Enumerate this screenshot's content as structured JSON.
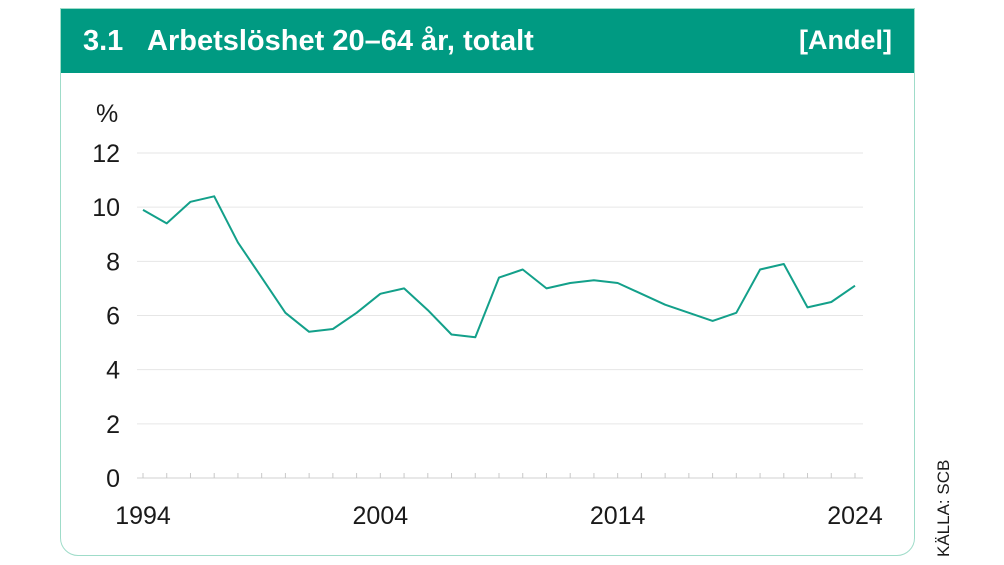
{
  "header": {
    "number": "3.1",
    "title": "Arbetslöshet 20–64 år, totalt",
    "unit_tag": "[Andel]"
  },
  "source": "KÄLLA: SCB",
  "colors": {
    "accent": "#009a82",
    "line": "#13a08a",
    "border": "#9fdcc9"
  },
  "chart_data": {
    "type": "line",
    "ylabel": "%",
    "ylim": [
      0,
      12
    ],
    "yticks": [
      0,
      2,
      4,
      6,
      8,
      10,
      12
    ],
    "xlim": [
      1994,
      2024
    ],
    "xtick_labels": [
      "1994",
      "2004",
      "2014",
      "2024"
    ],
    "grid": true,
    "x": [
      1994,
      1995,
      1996,
      1997,
      1998,
      1999,
      2000,
      2001,
      2002,
      2003,
      2004,
      2005,
      2006,
      2007,
      2008,
      2009,
      2010,
      2011,
      2012,
      2013,
      2014,
      2015,
      2016,
      2017,
      2018,
      2019,
      2020,
      2021,
      2022,
      2023,
      2024
    ],
    "series": [
      {
        "values": [
          9.9,
          9.4,
          10.2,
          10.4,
          8.7,
          7.4,
          6.1,
          5.4,
          5.5,
          6.1,
          6.8,
          7.0,
          6.2,
          5.3,
          5.2,
          7.4,
          7.7,
          7.0,
          7.2,
          7.3,
          7.2,
          6.8,
          6.4,
          6.1,
          5.8,
          6.1,
          7.7,
          7.9,
          6.3,
          6.5,
          7.1
        ]
      }
    ]
  }
}
